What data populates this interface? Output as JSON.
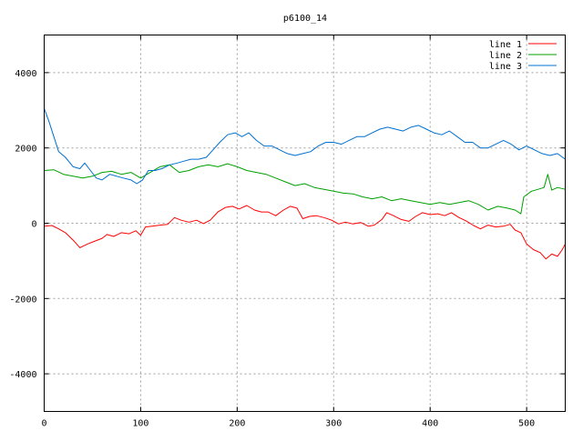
{
  "chart_data": {
    "type": "line",
    "title": "p6100_14",
    "xlabel": "",
    "ylabel": "",
    "xlim": [
      0,
      540
    ],
    "ylim": [
      -5000,
      5000
    ],
    "xticks": [
      0,
      100,
      200,
      300,
      400,
      500
    ],
    "yticks": [
      -4000,
      -2000,
      0,
      2000,
      4000
    ],
    "grid": true,
    "legend": "top-right",
    "series": [
      {
        "name": "line 1",
        "color": "#ff0000",
        "points": [
          [
            0,
            -80
          ],
          [
            8,
            -60
          ],
          [
            15,
            -150
          ],
          [
            22,
            -250
          ],
          [
            30,
            -450
          ],
          [
            37,
            -650
          ],
          [
            45,
            -550
          ],
          [
            52,
            -480
          ],
          [
            60,
            -400
          ],
          [
            65,
            -300
          ],
          [
            72,
            -350
          ],
          [
            80,
            -250
          ],
          [
            88,
            -280
          ],
          [
            95,
            -200
          ],
          [
            100,
            -320
          ],
          [
            105,
            -100
          ],
          [
            112,
            -80
          ],
          [
            120,
            -50
          ],
          [
            128,
            -30
          ],
          [
            135,
            150
          ],
          [
            142,
            80
          ],
          [
            150,
            30
          ],
          [
            158,
            80
          ],
          [
            165,
            -10
          ],
          [
            172,
            80
          ],
          [
            180,
            300
          ],
          [
            188,
            420
          ],
          [
            195,
            450
          ],
          [
            202,
            380
          ],
          [
            210,
            470
          ],
          [
            218,
            350
          ],
          [
            225,
            300
          ],
          [
            232,
            300
          ],
          [
            240,
            200
          ],
          [
            248,
            350
          ],
          [
            255,
            450
          ],
          [
            262,
            400
          ],
          [
            268,
            120
          ],
          [
            275,
            180
          ],
          [
            282,
            200
          ],
          [
            290,
            150
          ],
          [
            298,
            80
          ],
          [
            305,
            -20
          ],
          [
            312,
            30
          ],
          [
            320,
            -20
          ],
          [
            328,
            20
          ],
          [
            336,
            -80
          ],
          [
            342,
            -50
          ],
          [
            350,
            100
          ],
          [
            355,
            280
          ],
          [
            362,
            200
          ],
          [
            370,
            100
          ],
          [
            378,
            50
          ],
          [
            385,
            180
          ],
          [
            392,
            280
          ],
          [
            400,
            230
          ],
          [
            408,
            250
          ],
          [
            415,
            200
          ],
          [
            422,
            280
          ],
          [
            430,
            150
          ],
          [
            438,
            50
          ],
          [
            445,
            -60
          ],
          [
            452,
            -150
          ],
          [
            460,
            -50
          ],
          [
            468,
            -100
          ],
          [
            476,
            -80
          ],
          [
            483,
            -30
          ],
          [
            488,
            -180
          ],
          [
            494,
            -250
          ],
          [
            500,
            -550
          ],
          [
            507,
            -700
          ],
          [
            514,
            -780
          ],
          [
            520,
            -950
          ],
          [
            526,
            -820
          ],
          [
            532,
            -880
          ],
          [
            537,
            -700
          ],
          [
            540,
            -550
          ]
        ]
      },
      {
        "name": "line 2",
        "color": "#00a000",
        "points": [
          [
            0,
            1400
          ],
          [
            10,
            1420
          ],
          [
            20,
            1300
          ],
          [
            30,
            1250
          ],
          [
            40,
            1200
          ],
          [
            50,
            1250
          ],
          [
            60,
            1350
          ],
          [
            70,
            1380
          ],
          [
            80,
            1300
          ],
          [
            90,
            1350
          ],
          [
            100,
            1200
          ],
          [
            110,
            1350
          ],
          [
            120,
            1500
          ],
          [
            130,
            1550
          ],
          [
            140,
            1350
          ],
          [
            150,
            1400
          ],
          [
            160,
            1500
          ],
          [
            170,
            1550
          ],
          [
            180,
            1500
          ],
          [
            190,
            1580
          ],
          [
            200,
            1500
          ],
          [
            210,
            1400
          ],
          [
            220,
            1350
          ],
          [
            230,
            1300
          ],
          [
            240,
            1200
          ],
          [
            250,
            1100
          ],
          [
            260,
            1000
          ],
          [
            270,
            1050
          ],
          [
            280,
            950
          ],
          [
            290,
            900
          ],
          [
            300,
            850
          ],
          [
            310,
            800
          ],
          [
            320,
            780
          ],
          [
            330,
            700
          ],
          [
            340,
            650
          ],
          [
            350,
            700
          ],
          [
            360,
            600
          ],
          [
            370,
            650
          ],
          [
            380,
            600
          ],
          [
            390,
            550
          ],
          [
            400,
            500
          ],
          [
            410,
            550
          ],
          [
            420,
            500
          ],
          [
            430,
            550
          ],
          [
            440,
            600
          ],
          [
            450,
            500
          ],
          [
            460,
            350
          ],
          [
            470,
            450
          ],
          [
            480,
            400
          ],
          [
            488,
            350
          ],
          [
            494,
            250
          ],
          [
            497,
            700
          ],
          [
            505,
            850
          ],
          [
            512,
            900
          ],
          [
            518,
            950
          ],
          [
            522,
            1300
          ],
          [
            526,
            880
          ],
          [
            532,
            950
          ],
          [
            540,
            900
          ]
        ]
      },
      {
        "name": "line 3",
        "color": "#0070d0",
        "points": [
          [
            0,
            3050
          ],
          [
            5,
            2700
          ],
          [
            10,
            2300
          ],
          [
            15,
            1900
          ],
          [
            22,
            1750
          ],
          [
            30,
            1500
          ],
          [
            37,
            1450
          ],
          [
            42,
            1600
          ],
          [
            48,
            1400
          ],
          [
            54,
            1200
          ],
          [
            60,
            1150
          ],
          [
            68,
            1300
          ],
          [
            75,
            1250
          ],
          [
            82,
            1200
          ],
          [
            90,
            1150
          ],
          [
            96,
            1050
          ],
          [
            102,
            1150
          ],
          [
            108,
            1400
          ],
          [
            115,
            1400
          ],
          [
            122,
            1450
          ],
          [
            130,
            1550
          ],
          [
            138,
            1600
          ],
          [
            145,
            1650
          ],
          [
            152,
            1700
          ],
          [
            160,
            1700
          ],
          [
            168,
            1750
          ],
          [
            175,
            1950
          ],
          [
            182,
            2150
          ],
          [
            190,
            2350
          ],
          [
            198,
            2400
          ],
          [
            205,
            2300
          ],
          [
            212,
            2400
          ],
          [
            220,
            2200
          ],
          [
            228,
            2050
          ],
          [
            236,
            2050
          ],
          [
            244,
            1950
          ],
          [
            252,
            1850
          ],
          [
            260,
            1800
          ],
          [
            268,
            1850
          ],
          [
            276,
            1900
          ],
          [
            284,
            2050
          ],
          [
            292,
            2150
          ],
          [
            300,
            2150
          ],
          [
            308,
            2100
          ],
          [
            316,
            2200
          ],
          [
            324,
            2300
          ],
          [
            332,
            2300
          ],
          [
            340,
            2400
          ],
          [
            348,
            2500
          ],
          [
            356,
            2550
          ],
          [
            364,
            2500
          ],
          [
            372,
            2450
          ],
          [
            380,
            2550
          ],
          [
            388,
            2600
          ],
          [
            396,
            2500
          ],
          [
            404,
            2400
          ],
          [
            412,
            2350
          ],
          [
            420,
            2450
          ],
          [
            428,
            2300
          ],
          [
            436,
            2150
          ],
          [
            444,
            2150
          ],
          [
            452,
            2000
          ],
          [
            460,
            2000
          ],
          [
            468,
            2100
          ],
          [
            476,
            2200
          ],
          [
            484,
            2100
          ],
          [
            492,
            1950
          ],
          [
            500,
            2050
          ],
          [
            508,
            1950
          ],
          [
            516,
            1850
          ],
          [
            524,
            1800
          ],
          [
            532,
            1850
          ],
          [
            540,
            1700
          ]
        ]
      }
    ]
  }
}
